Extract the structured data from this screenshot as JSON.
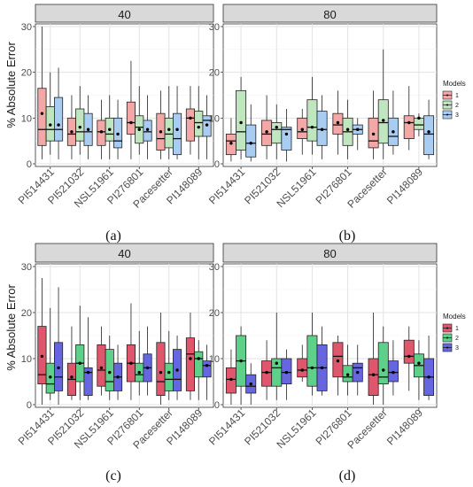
{
  "chart_data": [
    {
      "id": "a",
      "type": "box",
      "panel_label": "(a)",
      "ylabel": "% Absolute Error",
      "ylim": [
        0,
        30
      ],
      "yticks": [
        0,
        10,
        20,
        30
      ],
      "grid": true,
      "categories": [
        "PI514431",
        "PI521032",
        "NSL51961",
        "PI276801",
        "Pacesetter",
        "PI148089"
      ],
      "legend": {
        "title": "Models",
        "entries": [
          "1",
          "2",
          "3"
        ],
        "position": "right"
      },
      "colors": {
        "1": "#f4a7a7",
        "2": "#bfe6bf",
        "3": "#a9cdf2"
      },
      "facets": [
        {
          "label": "40",
          "boxes": [
            [
              {
                "min": 1,
                "q1": 4,
                "median": 7.5,
                "q3": 16.5,
                "max": 30,
                "mean": 11
              },
              {
                "min": 2,
                "q1": 5,
                "median": 7.5,
                "q3": 12.5,
                "max": 20,
                "mean": 8.5
              },
              {
                "min": 1,
                "q1": 5,
                "median": 7.5,
                "q3": 14.5,
                "max": 21,
                "mean": 8.5
              }
            ],
            [
              {
                "min": 1,
                "q1": 4,
                "median": 6.5,
                "q3": 10,
                "max": 15,
                "mean": 7
              },
              {
                "min": 2,
                "q1": 5,
                "median": 7,
                "q3": 12,
                "max": 17,
                "mean": 8
              },
              {
                "min": 1,
                "q1": 4,
                "median": 7,
                "q3": 11,
                "max": 15,
                "mean": 7.5
              }
            ],
            [
              {
                "min": 1,
                "q1": 4,
                "median": 7,
                "q3": 9.5,
                "max": 14,
                "mean": 7
              },
              {
                "min": 1,
                "q1": 5,
                "median": 6.5,
                "q3": 10,
                "max": 15,
                "mean": 7.5
              },
              {
                "min": 1,
                "q1": 3.5,
                "median": 5,
                "q3": 10,
                "max": 14,
                "mean": 6.5
              }
            ],
            [
              {
                "min": 1,
                "q1": 6.5,
                "median": 9,
                "q3": 13.5,
                "max": 22.5,
                "mean": 9
              },
              {
                "min": 2,
                "q1": 4.5,
                "median": 8,
                "q3": 10.5,
                "max": 17,
                "mean": 7.5
              },
              {
                "min": 1,
                "q1": 5,
                "median": 7,
                "q3": 9.5,
                "max": 15,
                "mean": 7.5
              }
            ],
            [
              {
                "min": 1,
                "q1": 3,
                "median": 5.5,
                "q3": 11,
                "max": 16,
                "mean": 7
              },
              {
                "min": 1,
                "q1": 3.5,
                "median": 6.5,
                "q3": 10,
                "max": 17,
                "mean": 7.5
              },
              {
                "min": 1,
                "q1": 2,
                "median": 5.5,
                "q3": 11,
                "max": 17,
                "mean": 7.5
              }
            ],
            [
              {
                "min": 2,
                "q1": 5,
                "median": 10,
                "q3": 12,
                "max": 17,
                "mean": 10
              },
              {
                "min": 1,
                "q1": 6,
                "median": 9,
                "q3": 11.5,
                "max": 17,
                "mean": 8
              },
              {
                "min": 1,
                "q1": 6,
                "median": 9.5,
                "q3": 10.5,
                "max": 15,
                "mean": 8.5
              }
            ]
          ]
        },
        {
          "label": "80",
          "boxes": [
            [
              {
                "min": 0.5,
                "q1": 2,
                "median": 5,
                "q3": 6.5,
                "max": 10,
                "mean": 4.5
              },
              {
                "min": 1,
                "q1": 3,
                "median": 7,
                "q3": 16,
                "max": 19,
                "mean": 9
              },
              {
                "min": 0.5,
                "q1": 1.5,
                "median": 4.5,
                "q3": 8.5,
                "max": 13,
                "mean": 4.5
              }
            ],
            [
              {
                "min": 1,
                "q1": 4,
                "median": 6.5,
                "q3": 9.5,
                "max": 15,
                "mean": 7
              },
              {
                "min": 1,
                "q1": 4.5,
                "median": 7.5,
                "q3": 9,
                "max": 13,
                "mean": 8
              },
              {
                "min": 0.5,
                "q1": 3,
                "median": 7.5,
                "q3": 8,
                "max": 12,
                "mean": 6.5
              }
            ],
            [
              {
                "min": 2,
                "q1": 5.5,
                "median": 7,
                "q3": 10,
                "max": 12,
                "mean": 7.5
              },
              {
                "min": 2,
                "q1": 5,
                "median": 8,
                "q3": 14,
                "max": 19,
                "mean": 8
              },
              {
                "min": 1,
                "q1": 4,
                "median": 7.5,
                "q3": 11.5,
                "max": 15,
                "mean": 7.5
              }
            ],
            [
              {
                "min": 2,
                "q1": 6.5,
                "median": 8.5,
                "q3": 11,
                "max": 16,
                "mean": 9
              },
              {
                "min": 1,
                "q1": 4,
                "median": 7,
                "q3": 10,
                "max": 14,
                "mean": 7.5
              },
              {
                "min": 3,
                "q1": 6.5,
                "median": 7.5,
                "q3": 8.5,
                "max": 10,
                "mean": 7.5
              }
            ],
            [
              {
                "min": 1,
                "q1": 3.5,
                "median": 5,
                "q3": 10,
                "max": 16,
                "mean": 6.5
              },
              {
                "min": 1,
                "q1": 4.5,
                "median": 9,
                "q3": 14,
                "max": 25,
                "mean": 9.5
              },
              {
                "min": 2,
                "q1": 4,
                "median": 6,
                "q3": 10,
                "max": 16,
                "mean": 7
              }
            ],
            [
              {
                "min": 3,
                "q1": 5.5,
                "median": 9,
                "q3": 10.5,
                "max": 17,
                "mean": 9
              },
              {
                "min": 6,
                "q1": 7.5,
                "median": 8.5,
                "q3": 10,
                "max": 11,
                "mean": 10
              },
              {
                "min": 1,
                "q1": 2,
                "median": 6.5,
                "q3": 10.5,
                "max": 14,
                "mean": 7
              }
            ]
          ]
        }
      ]
    },
    {
      "id": "b",
      "type": "box",
      "panel_label": "(c)",
      "ylabel": "% Absolute Error",
      "ylim": [
        0,
        30
      ],
      "yticks": [
        0,
        10,
        20,
        30
      ],
      "grid": true,
      "categories": [
        "PI514431",
        "PI521032",
        "NSL51961",
        "PI276801",
        "Pacesetter",
        "PI148089"
      ],
      "legend": {
        "title": "Models",
        "entries": [
          "1",
          "2",
          "3"
        ],
        "position": "right"
      },
      "colors": {
        "1": "#e0566d",
        "2": "#5fd089",
        "3": "#6667e0"
      },
      "facets": [
        {
          "label": "40",
          "boxes": [
            [
              {
                "min": 0,
                "q1": 4.5,
                "median": 6.5,
                "q3": 17,
                "max": 27.5,
                "mean": 10.5
              },
              {
                "min": 1,
                "q1": 2.5,
                "median": 4.5,
                "q3": 9,
                "max": 21,
                "mean": 6
              },
              {
                "min": 0,
                "q1": 3,
                "median": 6,
                "q3": 13.5,
                "max": 25.5,
                "mean": 8
              }
            ],
            [
              {
                "min": 1,
                "q1": 2,
                "median": 5.5,
                "q3": 9,
                "max": 17,
                "mean": 6
              },
              {
                "min": 1,
                "q1": 5,
                "median": 9,
                "q3": 13,
                "max": 21.5,
                "mean": 9
              },
              {
                "min": 1,
                "q1": 2,
                "median": 7,
                "q3": 8,
                "max": 19,
                "mean": 7
              }
            ],
            [
              {
                "min": 2,
                "q1": 4,
                "median": 7.5,
                "q3": 13,
                "max": 17,
                "mean": 8
              },
              {
                "min": 1,
                "q1": 3,
                "median": 5,
                "q3": 12,
                "max": 15,
                "mean": 7
              },
              {
                "min": 1,
                "q1": 3,
                "median": 6,
                "q3": 9,
                "max": 13,
                "mean": 6
              }
            ],
            [
              {
                "min": 1,
                "q1": 5,
                "median": 9,
                "q3": 13,
                "max": 22,
                "mean": 9
              },
              {
                "min": 2,
                "q1": 5,
                "median": 6.5,
                "q3": 9,
                "max": 16,
                "mean": 7
              },
              {
                "min": 2,
                "q1": 5,
                "median": 8,
                "q3": 11,
                "max": 17,
                "mean": 8
              }
            ],
            [
              {
                "min": 0,
                "q1": 2,
                "median": 5,
                "q3": 13.5,
                "max": 20,
                "mean": 7
              },
              {
                "min": 1,
                "q1": 3,
                "median": 5.5,
                "q3": 9,
                "max": 16,
                "mean": 7
              },
              {
                "min": 1,
                "q1": 3,
                "median": 5.5,
                "q3": 12,
                "max": 15,
                "mean": 7.5
              }
            ],
            [
              {
                "min": 1,
                "q1": 3,
                "median": 11,
                "q3": 14.5,
                "max": 20,
                "mean": 10
              },
              {
                "min": 1,
                "q1": 6,
                "median": 10,
                "q3": 11.5,
                "max": 14,
                "mean": 10
              },
              {
                "min": 1,
                "q1": 6,
                "median": 8.5,
                "q3": 9.5,
                "max": 13,
                "mean": 8.5
              }
            ]
          ]
        },
        {
          "label": "80",
          "boxes": [
            [
              {
                "min": 0,
                "q1": 2.5,
                "median": 5.5,
                "q3": 8,
                "max": 12,
                "mean": 5.5
              },
              {
                "min": 0,
                "q1": 4,
                "median": 9.5,
                "q3": 15,
                "max": 17,
                "mean": 9.5
              },
              {
                "min": 0,
                "q1": 2.5,
                "median": 4,
                "q3": 6.5,
                "max": 9,
                "mean": 4.5
              }
            ],
            [
              {
                "min": 1,
                "q1": 4,
                "median": 7,
                "q3": 9.5,
                "max": 14,
                "mean": 7
              },
              {
                "min": 1,
                "q1": 4,
                "median": 8,
                "q3": 10,
                "max": 20,
                "mean": 9
              },
              {
                "min": 1,
                "q1": 4.5,
                "median": 7,
                "q3": 10,
                "max": 12,
                "mean": 7
              }
            ],
            [
              {
                "min": 5,
                "q1": 6,
                "median": 7.5,
                "q3": 10,
                "max": 13,
                "mean": 7.5
              },
              {
                "min": 2,
                "q1": 4,
                "median": 8,
                "q3": 15,
                "max": 20,
                "mean": 8
              },
              {
                "min": 2,
                "q1": 3,
                "median": 8,
                "q3": 13,
                "max": 17,
                "mean": 8
              }
            ],
            [
              {
                "min": 2,
                "q1": 6,
                "median": 10.5,
                "q3": 13.5,
                "max": 15,
                "mean": 9.5
              },
              {
                "min": 2,
                "q1": 5,
                "median": 6,
                "q3": 8.5,
                "max": 13,
                "mean": 6.5
              },
              {
                "min": 2,
                "q1": 5,
                "median": 8,
                "q3": 9,
                "max": 13,
                "mean": 7
              }
            ],
            [
              {
                "min": 0,
                "q1": 2,
                "median": 6.5,
                "q3": 10,
                "max": 20,
                "mean": 6.5
              },
              {
                "min": 0,
                "q1": 4.5,
                "median": 6,
                "q3": 13.5,
                "max": 17,
                "mean": 7.5
              },
              {
                "min": 2,
                "q1": 5,
                "median": 7,
                "q3": 9.5,
                "max": 14,
                "mean": 7
              }
            ],
            [
              {
                "min": 3,
                "q1": 9,
                "median": 10.5,
                "q3": 14,
                "max": 17,
                "mean": 10.5
              },
              {
                "min": 1,
                "q1": 6,
                "median": 8.5,
                "q3": 11,
                "max": 14,
                "mean": 9
              },
              {
                "min": 1,
                "q1": 2,
                "median": 6,
                "q3": 10,
                "max": 15,
                "mean": 6
              }
            ]
          ]
        }
      ]
    }
  ],
  "panel_labels": [
    "(a)",
    "(b)",
    "(c)",
    "(d)"
  ]
}
